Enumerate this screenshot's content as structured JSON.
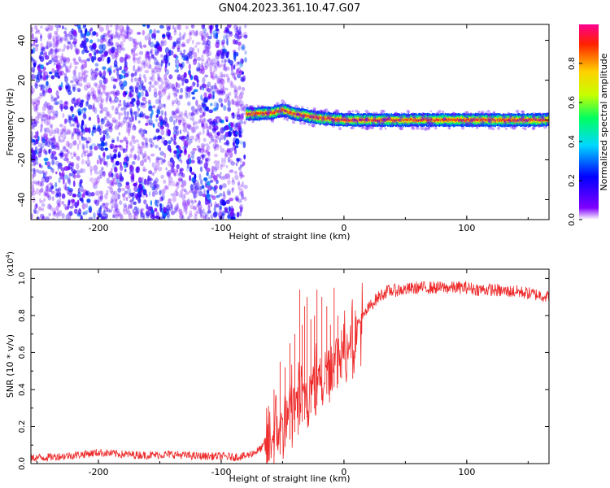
{
  "figure": {
    "title": "GN04.2023.361.10.47.G07",
    "background": "#ffffff",
    "line_color": "#ee2a2a"
  },
  "chart_data": [
    {
      "type": "heatmap",
      "title": "",
      "xlabel": "Height of straight line (km)",
      "ylabel": "Frequency (Hz)",
      "xlim": [
        -255,
        167
      ],
      "ylim": [
        -50,
        48
      ],
      "xticks": [
        -200,
        -100,
        0,
        100
      ],
      "xtick_labels": [
        "-200",
        "-100",
        "0",
        "100"
      ],
      "yticks": [
        -40,
        -20,
        0,
        20,
        40
      ],
      "ytick_labels": [
        "-40",
        "-20",
        "0",
        "20",
        "40"
      ],
      "grid": false,
      "regions": [
        {
          "name": "",
          "x": [
            -255,
            -80
          ],
          "y": [
            -50,
            48
          ],
          "amplitude_range": [
            0.05,
            0.25
          ]
        },
        {
          "name": "",
          "x": [
            -80,
            167
          ],
          "y": [
            -4,
            6
          ],
          "amplitude_range": [
            0.3,
            1.0
          ]
        }
      ],
      "ridge": {
        "x": [
          -80,
          -60,
          -50,
          -40,
          -20,
          0,
          40,
          100,
          167
        ],
        "y": [
          3,
          3.5,
          5,
          3,
          1,
          0,
          0,
          0,
          0
        ]
      },
      "colorbar": {
        "label": "Normalized spectral amplitude",
        "range": [
          0.0,
          1.0
        ],
        "ticks": [
          0.0,
          0.2,
          0.4,
          0.6,
          0.8
        ],
        "tick_labels": [
          "0.0",
          "0.2",
          "0.4",
          "0.6",
          "0.8"
        ],
        "colormap": [
          "#ffffff",
          "#8000ff",
          "#0000ff",
          "#00d8ff",
          "#00ff60",
          "#c8ff00",
          "#ffd000",
          "#ff2000",
          "#ff0090"
        ]
      }
    },
    {
      "type": "line",
      "title": "",
      "xlabel": "Height of straight line (km)",
      "ylabel": "SNR (10 * v/v)",
      "scale_label": "(x10",
      "scale_exponent": "4",
      "scale_close": ")",
      "xlim": [
        -255,
        167
      ],
      "ylim": [
        0.0,
        1.05
      ],
      "xticks": [
        -200,
        -100,
        0,
        100
      ],
      "xtick_labels": [
        "-200",
        "-100",
        "0",
        "100"
      ],
      "yticks": [
        0.0,
        0.2,
        0.4,
        0.6,
        0.8,
        1.0
      ],
      "ytick_labels": [
        "0.0",
        "0.2",
        "0.4",
        "0.6",
        "0.8",
        "1.0"
      ],
      "grid": false,
      "series": [
        {
          "name": "",
          "color": "#ee2a2a",
          "x": [
            -255,
            -240,
            -220,
            -200,
            -180,
            -160,
            -140,
            -120,
            -100,
            -90,
            -80,
            -70,
            -60,
            -50,
            -45,
            -40,
            -35,
            -30,
            -25,
            -20,
            -15,
            -10,
            -5,
            0,
            5,
            10,
            15,
            20,
            25,
            30,
            35,
            40,
            50,
            60,
            70,
            80,
            90,
            100,
            110,
            120,
            130,
            140,
            150,
            160,
            167
          ],
          "y": [
            0.03,
            0.035,
            0.045,
            0.06,
            0.05,
            0.045,
            0.05,
            0.04,
            0.04,
            0.035,
            0.04,
            0.07,
            0.12,
            0.22,
            0.27,
            0.32,
            0.37,
            0.4,
            0.44,
            0.48,
            0.52,
            0.55,
            0.58,
            0.63,
            0.67,
            0.72,
            0.78,
            0.84,
            0.88,
            0.91,
            0.93,
            0.935,
            0.94,
            0.95,
            0.95,
            0.95,
            0.95,
            0.95,
            0.94,
            0.94,
            0.93,
            0.93,
            0.92,
            0.91,
            0.9
          ]
        }
      ],
      "spikes": {
        "x": [
          -63,
          -57,
          -52,
          -48,
          -44,
          -40,
          -36,
          -34,
          -32,
          -30,
          -27,
          -24,
          -22,
          -18,
          -14,
          -11,
          -8,
          -5,
          -2
        ],
        "y": [
          0.3,
          0.4,
          0.55,
          0.52,
          0.65,
          0.7,
          0.94,
          0.75,
          0.85,
          0.9,
          0.78,
          0.8,
          0.94,
          0.9,
          0.85,
          0.75,
          0.95,
          0.8,
          0.72
        ]
      }
    }
  ]
}
